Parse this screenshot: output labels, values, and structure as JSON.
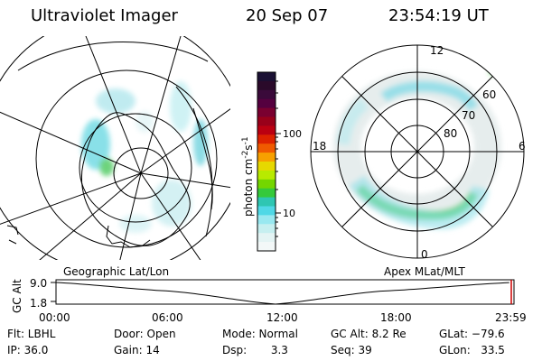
{
  "header": {
    "instrument": "Ultraviolet Imager",
    "date": "20 Sep 07",
    "time": "23:54:19 UT"
  },
  "colorbar": {
    "label": "photon cm",
    "label_exp1": "-2",
    "label_mid": "s",
    "label_exp2": "-1",
    "ticks": [
      "100",
      "10"
    ],
    "colors": [
      "#1a1033",
      "#2a0a2a",
      "#3a0a3a",
      "#55003f",
      "#7a0030",
      "#99001a",
      "#bb0011",
      "#dd2200",
      "#f05a00",
      "#f7a000",
      "#e6d800",
      "#b8ea00",
      "#74d600",
      "#35c93a",
      "#2ec6b2",
      "#50d8e6",
      "#99e8f0",
      "#c6eff0",
      "#e4f4f4",
      "#f3f8f8"
    ]
  },
  "left_map": {
    "label": "Geographic Lat/Lon"
  },
  "right_map": {
    "label": "Apex MLat/MLT",
    "mlt_labels": [
      "12",
      "18",
      "6",
      "0"
    ],
    "lat_labels": [
      "60",
      "70",
      "80"
    ]
  },
  "timeline": {
    "ylabel": "GC Alt",
    "y_ticks": [
      "9.0",
      "1.8"
    ],
    "x_ticks": [
      "00:00",
      "06:00",
      "12:00",
      "18:00",
      "23:59"
    ],
    "orbit_shape": [
      [
        0,
        0.0
      ],
      [
        6,
        0.4
      ],
      [
        11.5,
        1.0
      ],
      [
        17,
        0.4
      ],
      [
        23.9,
        0.0
      ]
    ]
  },
  "info": {
    "rows": [
      [
        "Flt: LBHL",
        "Door: Open",
        "Mode: Normal",
        "GC Alt: 8.2 Re",
        "GLat: −79.6"
      ],
      [
        "IP: 36.0",
        "Gain: 14",
        "Dsp:       3.3",
        "Seq: 39",
        "GLon:   33.5"
      ]
    ]
  }
}
